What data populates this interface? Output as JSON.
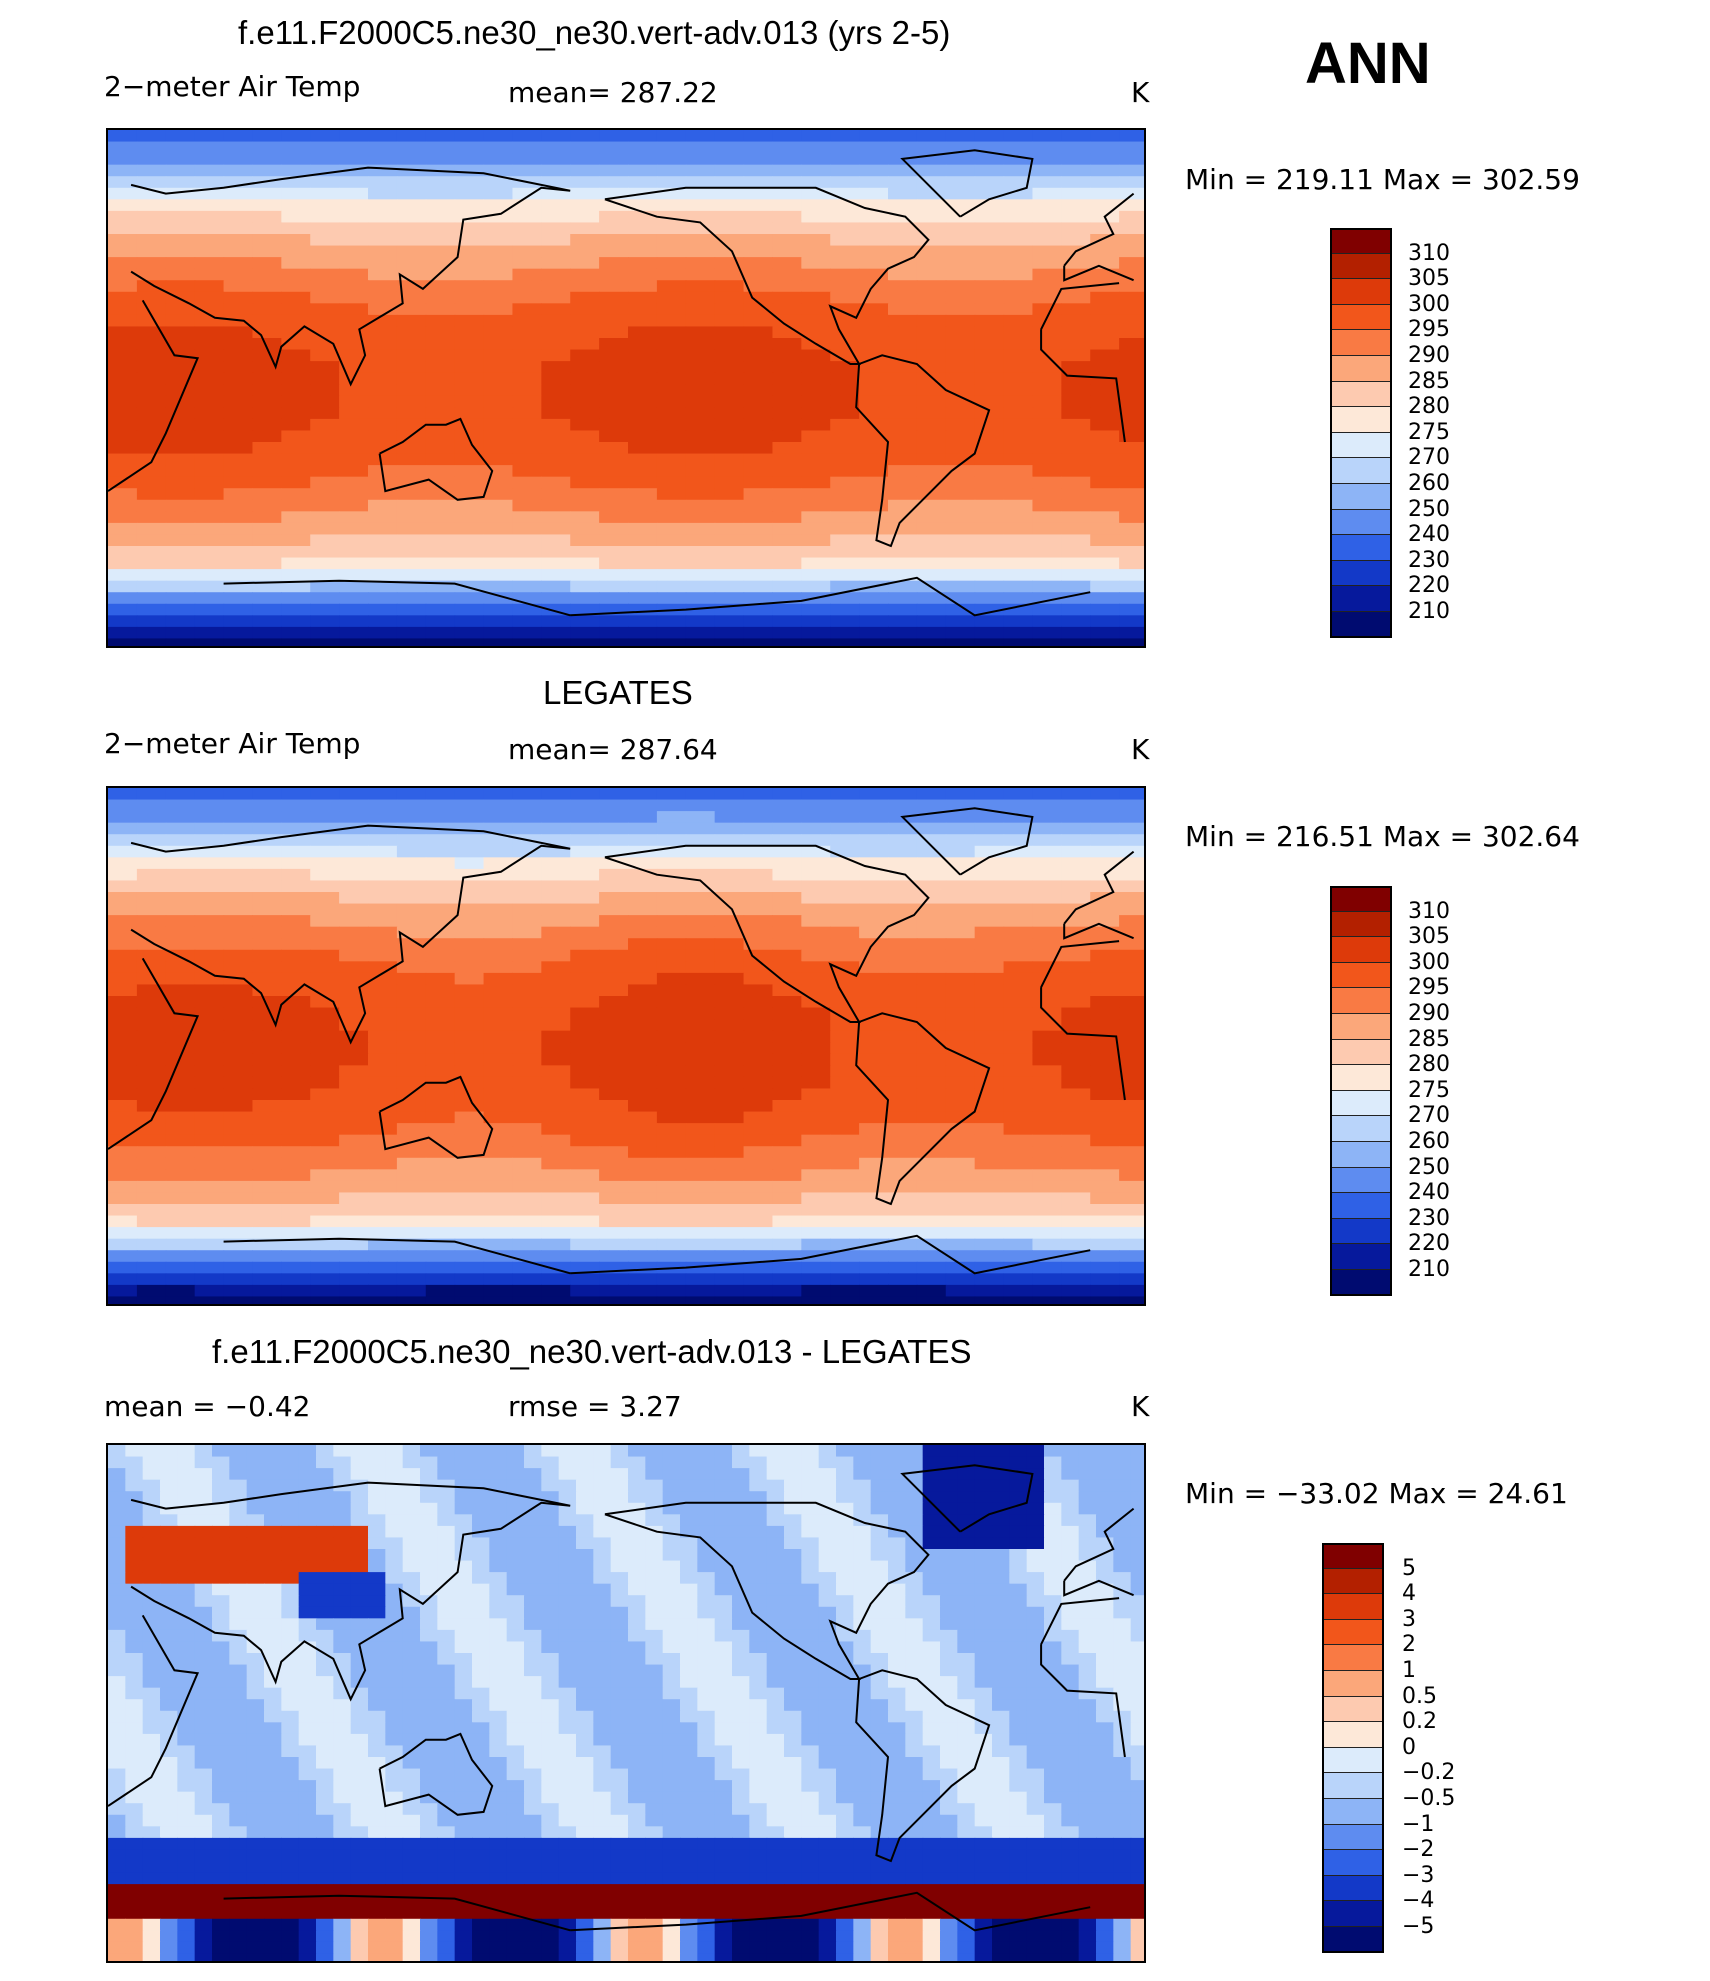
{
  "annotation": "ANN",
  "panels": [
    {
      "title": "f.e11.F2000C5.ne30_ne30.vert-adv.013 (yrs 2-5)",
      "left_label": "2−meter Air Temp",
      "center_label": "mean=  287.22",
      "units": "K",
      "minmax": "Min  =  219.11  Max  =  302.59",
      "field": "model"
    },
    {
      "title": "LEGATES",
      "left_label": "2−meter Air Temp",
      "center_label": "mean=  287.64",
      "units": "K",
      "minmax": "Min  =  216.51  Max  =  302.64",
      "field": "obs"
    },
    {
      "title": "f.e11.F2000C5.ne30_ne30.vert-adv.013 - LEGATES",
      "left_label": "mean  =     −0.42",
      "center_label": "rmse  =      3.27",
      "units": "K",
      "minmax": "Min  =  −33.02  Max  =    24.61",
      "field": "diff"
    }
  ],
  "colorbars": {
    "temperature": {
      "labels": [
        "310",
        "305",
        "300",
        "295",
        "290",
        "285",
        "280",
        "275",
        "270",
        "260",
        "250",
        "240",
        "230",
        "220",
        "210"
      ],
      "colors": [
        "#800000",
        "#b32000",
        "#dd3a0a",
        "#f2561b",
        "#f97a44",
        "#fba77a",
        "#fdcab0",
        "#fde8d8",
        "#dcebfb",
        "#b9d4fa",
        "#8db4f6",
        "#5e8cf0",
        "#2f61e6",
        "#1339c8",
        "#06199c",
        "#000b70"
      ]
    },
    "difference": {
      "labels": [
        "5",
        "4",
        "3",
        "2",
        "1",
        "0.5",
        "0.2",
        "0",
        "−0.2",
        "−0.5",
        "−1",
        "−2",
        "−3",
        "−4",
        "−5"
      ],
      "colors": [
        "#800000",
        "#b32000",
        "#dd3a0a",
        "#f2561b",
        "#f97a44",
        "#fba77a",
        "#fdcab0",
        "#fde8d8",
        "#dcebfb",
        "#b9d4fa",
        "#8db4f6",
        "#5e8cf0",
        "#2f61e6",
        "#1339c8",
        "#06199c",
        "#000b70"
      ]
    }
  }
}
